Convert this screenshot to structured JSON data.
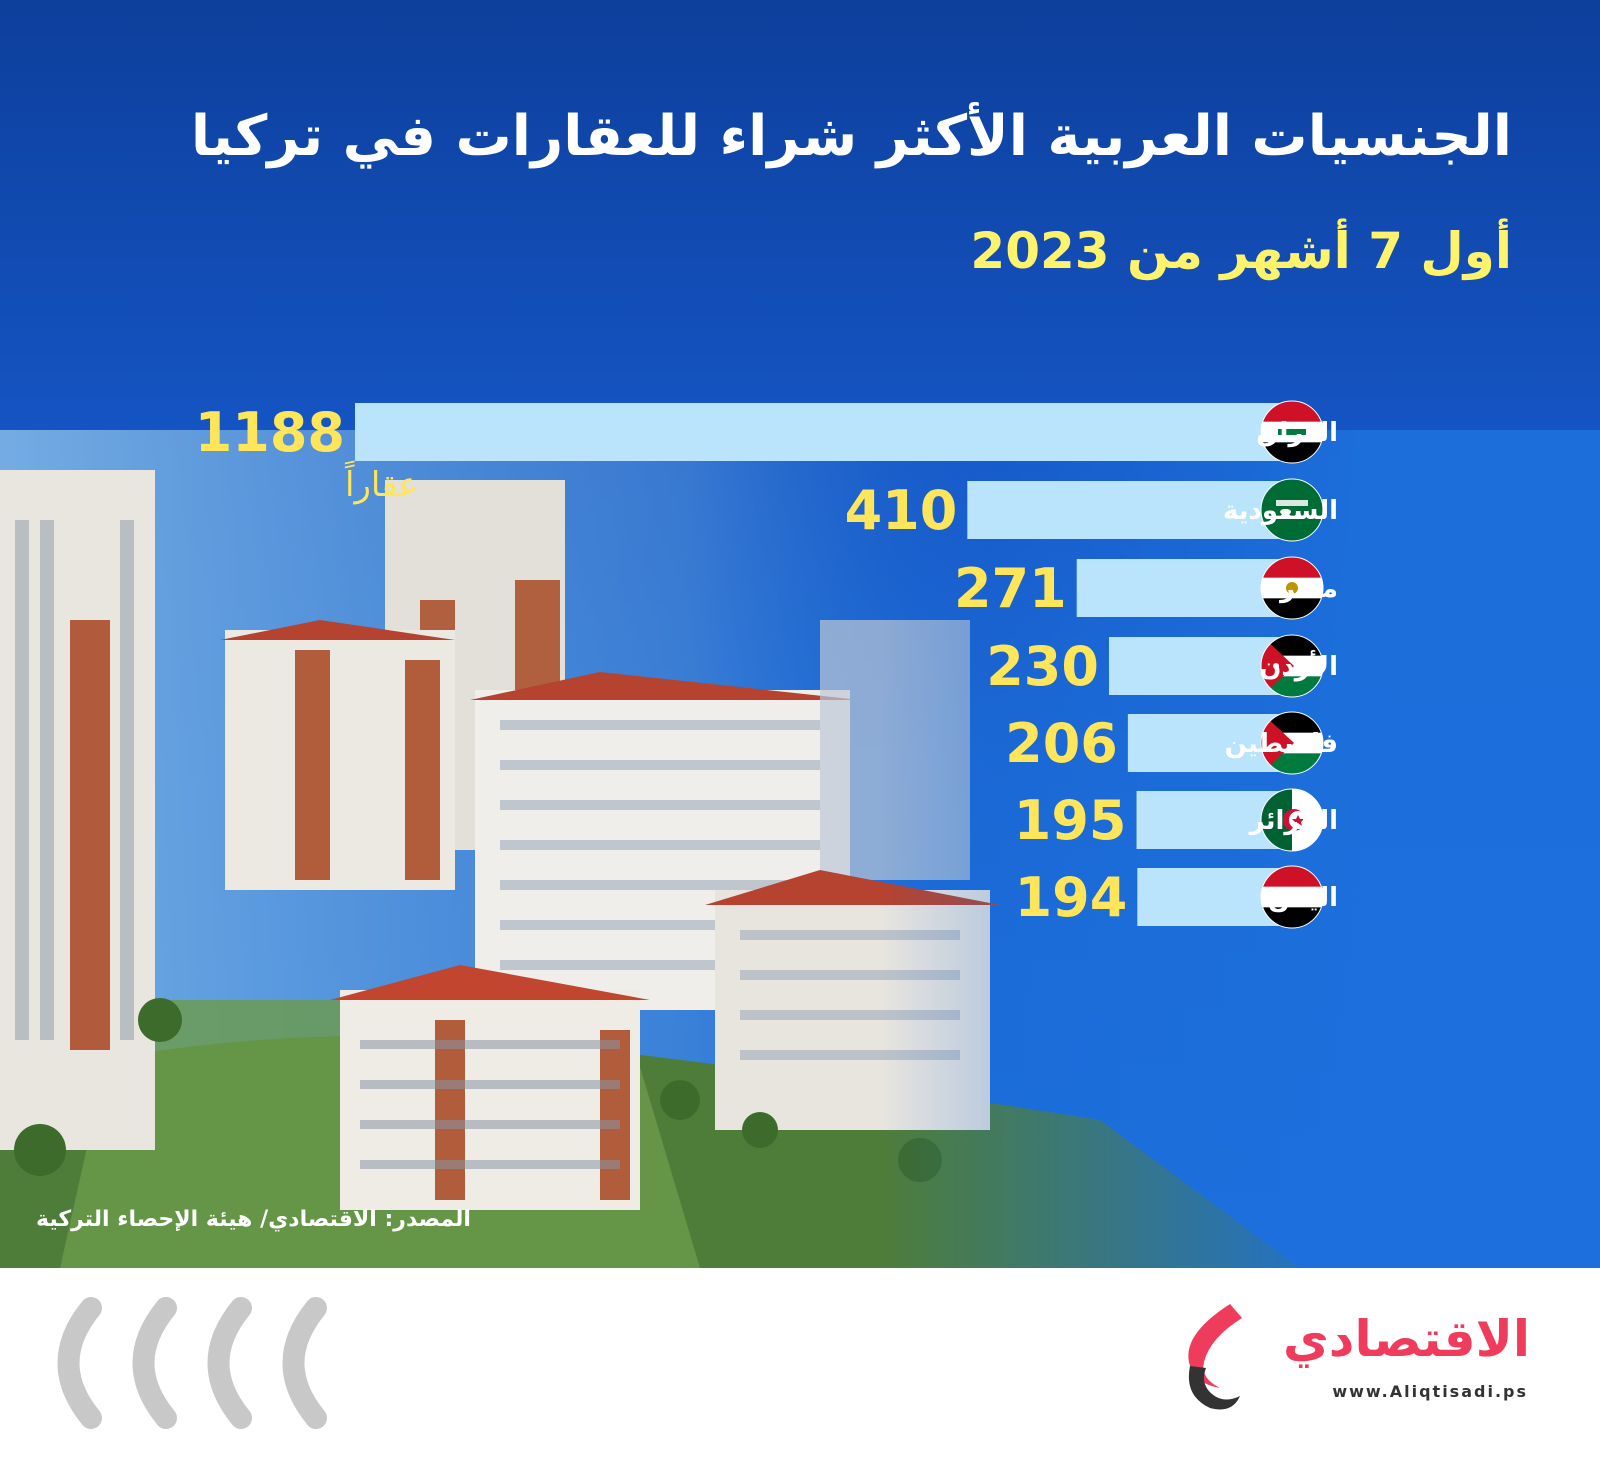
{
  "header": {
    "title": "الجنسيات العربية الأكثر شراء للعقارات في تركيا",
    "subtitle": "أول 7 أشهر من 2023"
  },
  "colors": {
    "bar": "#b9e4fb",
    "value_text": "#ffe55a",
    "background_top": "#0d3f9c",
    "background_bottom": "#1c6fdc"
  },
  "chart_data": {
    "type": "bar",
    "orientation": "horizontal",
    "categories": [
      "العراق",
      "السعودية",
      "مصر",
      "الأردن",
      "فلسطين",
      "الجزائر",
      "اليمن"
    ],
    "values": [
      1188,
      410,
      271,
      230,
      206,
      195,
      194
    ],
    "value_labels": [
      "1188",
      "410",
      "271",
      "230",
      "206",
      "195",
      "194"
    ],
    "unit": "عقاراً",
    "flag_icons": [
      "iraq-flag-icon",
      "saudi-flag-icon",
      "egypt-flag-icon",
      "jordan-flag-icon",
      "palestine-flag-icon",
      "algeria-flag-icon",
      "yemen-flag-icon"
    ],
    "title": "الجنسيات العربية الأكثر شراء للعقارات في تركيا",
    "xlim": [
      0,
      1188
    ],
    "grid": false,
    "legend": "none"
  },
  "source": "المصدر: الاقتصادي/ هيئة الإحصاء التركية",
  "footer": {
    "logo_text": "الاقتصادي",
    "logo_url": "www.Aliqtisadi.ps",
    "chevron_icon": "chevron-left-icon"
  }
}
